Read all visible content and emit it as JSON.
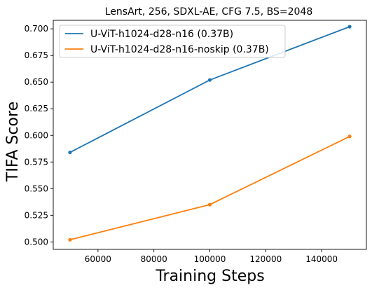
{
  "chart_data": {
    "type": "line",
    "title": "LensArt, 256, SDXL-AE, CFG 7.5, BS=2048",
    "xlabel": "Training Steps",
    "ylabel": "TIFA Score",
    "xlim": [
      44000,
      156000
    ],
    "ylim": [
      0.493,
      0.708
    ],
    "x_ticks": [
      60000,
      80000,
      100000,
      120000,
      140000
    ],
    "x_tick_labels": [
      "60000",
      "80000",
      "100000",
      "120000",
      "140000"
    ],
    "y_ticks": [
      0.5,
      0.525,
      0.55,
      0.575,
      0.6,
      0.625,
      0.65,
      0.675,
      0.7
    ],
    "y_tick_labels": [
      "0.500",
      "0.525",
      "0.550",
      "0.575",
      "0.600",
      "0.625",
      "0.650",
      "0.675",
      "0.700"
    ],
    "grid": false,
    "legend_position": "top-left",
    "series": [
      {
        "name": "U-ViT-h1024-d28-n16 (0.37B)",
        "color": "#1f77b4",
        "x": [
          50000,
          100000,
          150000
        ],
        "y": [
          0.584,
          0.652,
          0.702
        ]
      },
      {
        "name": "U-ViT-h1024-d28-n16-noskip (0.37B)",
        "color": "#ff7f0e",
        "x": [
          50000,
          100000,
          150000
        ],
        "y": [
          0.502,
          0.535,
          0.599
        ]
      }
    ]
  }
}
